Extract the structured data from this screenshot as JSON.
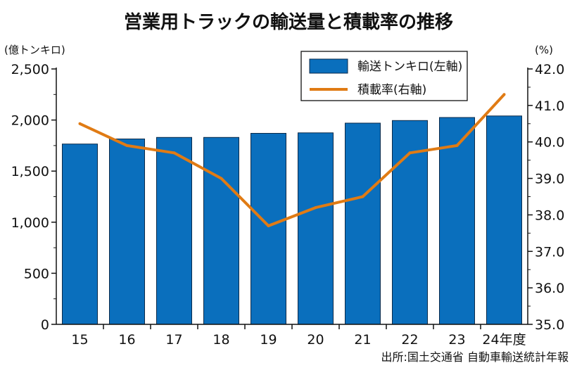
{
  "chart_data": {
    "type": "bar",
    "title": "営業用トラックの輸送量と積載率の推移",
    "categories": [
      "15",
      "16",
      "17",
      "18",
      "19",
      "20",
      "21",
      "22",
      "23",
      "24年度"
    ],
    "series": [
      {
        "name": "輸送トンキロ(左軸)",
        "type": "bar",
        "axis": "left",
        "color": "#0a6fbd",
        "values": [
          1765,
          1815,
          1830,
          1830,
          1870,
          1875,
          1970,
          1995,
          2025,
          2040
        ]
      },
      {
        "name": "積載率(右軸)",
        "type": "line",
        "axis": "right",
        "color": "#e07b14",
        "values": [
          40.5,
          39.9,
          39.7,
          39.0,
          37.7,
          38.2,
          38.5,
          39.7,
          39.9,
          41.3
        ]
      }
    ],
    "y_left": {
      "unit_label": "(億トンキロ)",
      "range": [
        0,
        2500
      ],
      "ticks": [
        "0",
        "500",
        "1,000",
        "1,500",
        "2,000",
        "2,500"
      ]
    },
    "y_right": {
      "unit_label": "(%)",
      "range": [
        35.0,
        42.0
      ],
      "ticks": [
        "35.0",
        "36.0",
        "37.0",
        "38.0",
        "39.0",
        "40.0",
        "41.0",
        "42.0"
      ]
    },
    "grid": false,
    "legend": "top-right",
    "source": "出所:国土交通省 自動車輸送統計年報"
  }
}
